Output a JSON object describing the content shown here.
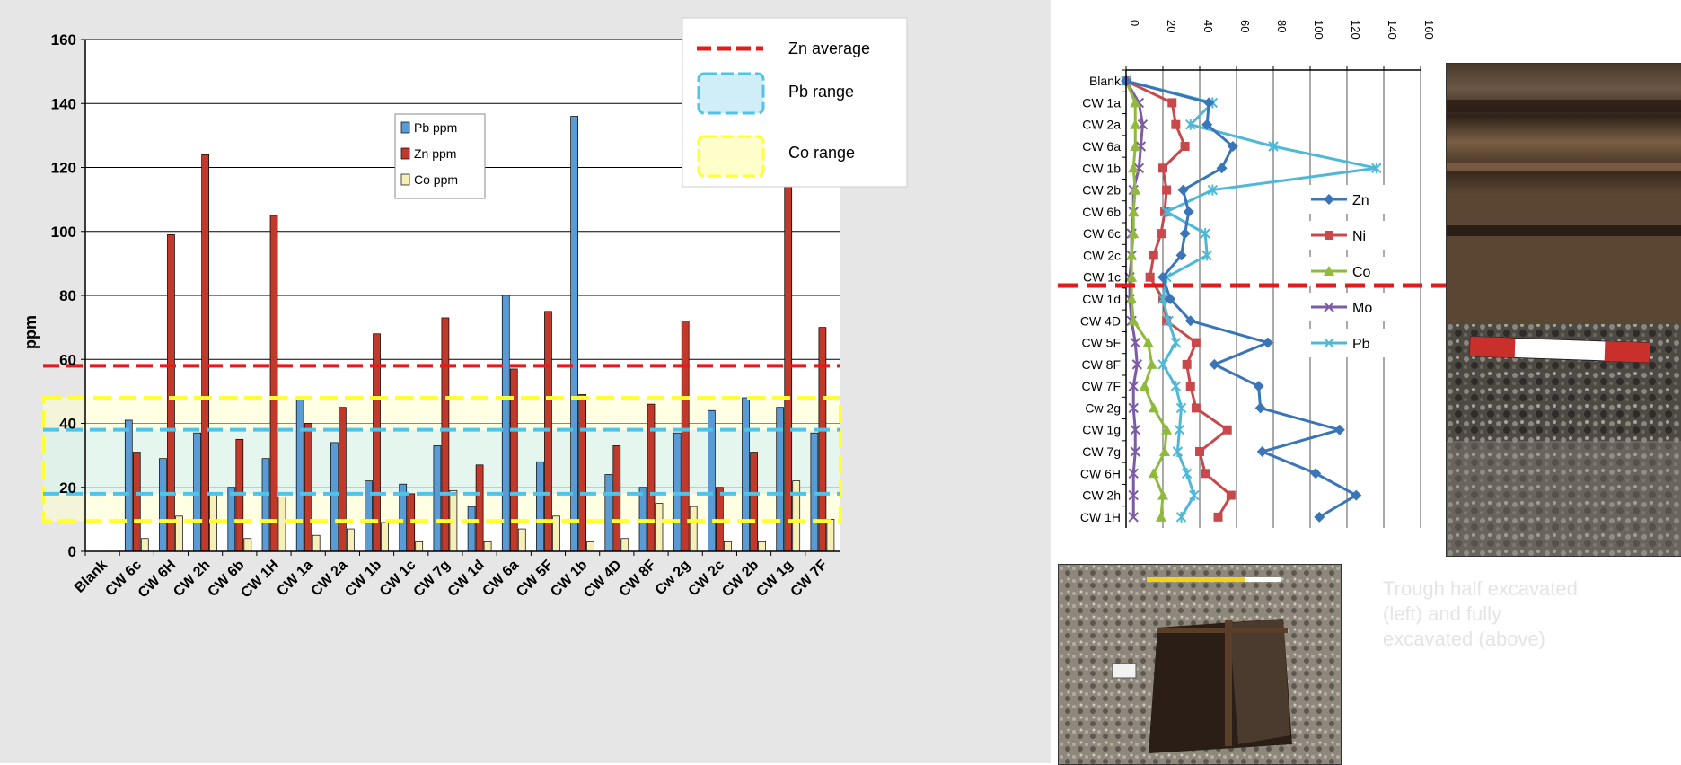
{
  "chart_data": [
    {
      "type": "bar",
      "ylabel": "ppm",
      "ylim": [
        0,
        160
      ],
      "yticks": [
        0,
        20,
        40,
        60,
        80,
        100,
        120,
        140,
        160
      ],
      "grid": true,
      "legend_position": "top-center",
      "categories": [
        "Blank",
        "CW 6c",
        "CW 6H",
        "CW 2h",
        "CW 6b",
        "CW 1H",
        "CW 1a",
        "CW 2a",
        "CW 1b",
        "CW 1c",
        "CW 7g",
        "CW 1d",
        "CW 6a",
        "CW 5F",
        "CW 1b",
        "CW 4D",
        "CW 8F",
        "Cw 2g",
        "CW 2c",
        "CW 2b",
        "CW 1g",
        "CW 7F"
      ],
      "series": [
        {
          "name": "Pb ppm",
          "color": "#5b9bd5",
          "values": [
            0,
            41,
            29,
            37,
            20,
            29,
            48,
            34,
            22,
            21,
            33,
            14,
            80,
            28,
            136,
            24,
            20,
            37,
            44,
            48,
            45,
            37
          ]
        },
        {
          "name": "Zn ppm",
          "color": "#c0392b",
          "values": [
            0,
            31,
            99,
            124,
            35,
            105,
            40,
            45,
            68,
            18,
            73,
            27,
            57,
            75,
            49,
            33,
            46,
            72,
            20,
            31,
            116,
            70
          ]
        },
        {
          "name": "Co ppm",
          "color": "#f6efb8",
          "values": [
            0,
            4,
            11,
            18,
            4,
            17,
            5,
            7,
            9,
            3,
            19,
            3,
            7,
            11,
            3,
            4,
            15,
            14,
            3,
            3,
            22,
            10
          ]
        }
      ],
      "reference_lines": {
        "zn_average": {
          "label": "Zn average",
          "value": 58,
          "color": "#e31b1b"
        },
        "pb_range": {
          "label": "Pb range",
          "min": 18,
          "max": 38,
          "color": "#4fc3e8",
          "fill": "#cfeef8"
        },
        "co_range": {
          "label": "Co range",
          "min": 9.5,
          "max": 48,
          "color": "#ffff33",
          "fill": "#ffffcc"
        }
      }
    },
    {
      "type": "line",
      "orientation": "depth-profile",
      "xlim": [
        0,
        160
      ],
      "xticks": [
        0,
        20,
        40,
        60,
        80,
        100,
        120,
        140,
        160
      ],
      "grid": true,
      "legend_position": "right",
      "categories": [
        "Blank",
        "CW 1a",
        "CW 2a",
        "CW 6a",
        "CW 1b",
        "CW 2b",
        "CW 6b",
        "CW 6c",
        "CW 2c",
        "CW 1c",
        "CW 1d",
        "CW 4D",
        "CW 5F",
        "CW 8F",
        "CW 7F",
        "Cw 2g",
        "CW 1g",
        "CW 7g",
        "CW 6H",
        "CW 2h",
        "CW 1H"
      ],
      "series": [
        {
          "name": "Zn",
          "color": "#3a75b8",
          "marker": "diamond",
          "values": [
            0,
            45,
            44,
            58,
            52,
            31,
            34,
            32,
            30,
            20,
            24,
            35,
            77,
            48,
            72,
            73,
            116,
            74,
            103,
            125,
            105
          ]
        },
        {
          "name": "Ni",
          "color": "#c8484b",
          "marker": "square",
          "values": [
            0,
            25,
            27,
            32,
            20,
            22,
            21,
            19,
            15,
            13,
            20,
            22,
            38,
            33,
            35,
            38,
            55,
            40,
            43,
            57,
            50
          ]
        },
        {
          "name": "Co",
          "color": "#8fba3c",
          "marker": "triangle",
          "values": [
            0,
            5,
            5,
            5,
            4,
            5,
            4,
            4,
            3,
            3,
            3,
            4,
            12,
            14,
            10,
            15,
            22,
            21,
            15,
            20,
            19
          ]
        },
        {
          "name": "Mo",
          "color": "#7d5aa6",
          "marker": "x",
          "values": [
            0,
            7,
            9,
            8,
            7,
            4,
            4,
            3,
            3,
            2,
            2,
            3,
            5,
            6,
            4,
            4,
            5,
            5,
            4,
            4,
            4
          ]
        },
        {
          "name": "Pb",
          "color": "#4fb8d6",
          "marker": "asterisk",
          "values": [
            0,
            47,
            35,
            80,
            136,
            47,
            22,
            43,
            44,
            22,
            20,
            23,
            27,
            20,
            27,
            30,
            29,
            28,
            33,
            37,
            30
          ]
        }
      ],
      "reference_line_color": "#e31b1b"
    }
  ],
  "photos": {
    "side": {
      "name": "trough-section-photo"
    },
    "bottom": {
      "name": "trough-excavation-photo",
      "scale_bar": true
    }
  },
  "caption": {
    "line1": "Trough half excavated",
    "line2": "(left) and fully",
    "line3": "excavated (above)"
  }
}
